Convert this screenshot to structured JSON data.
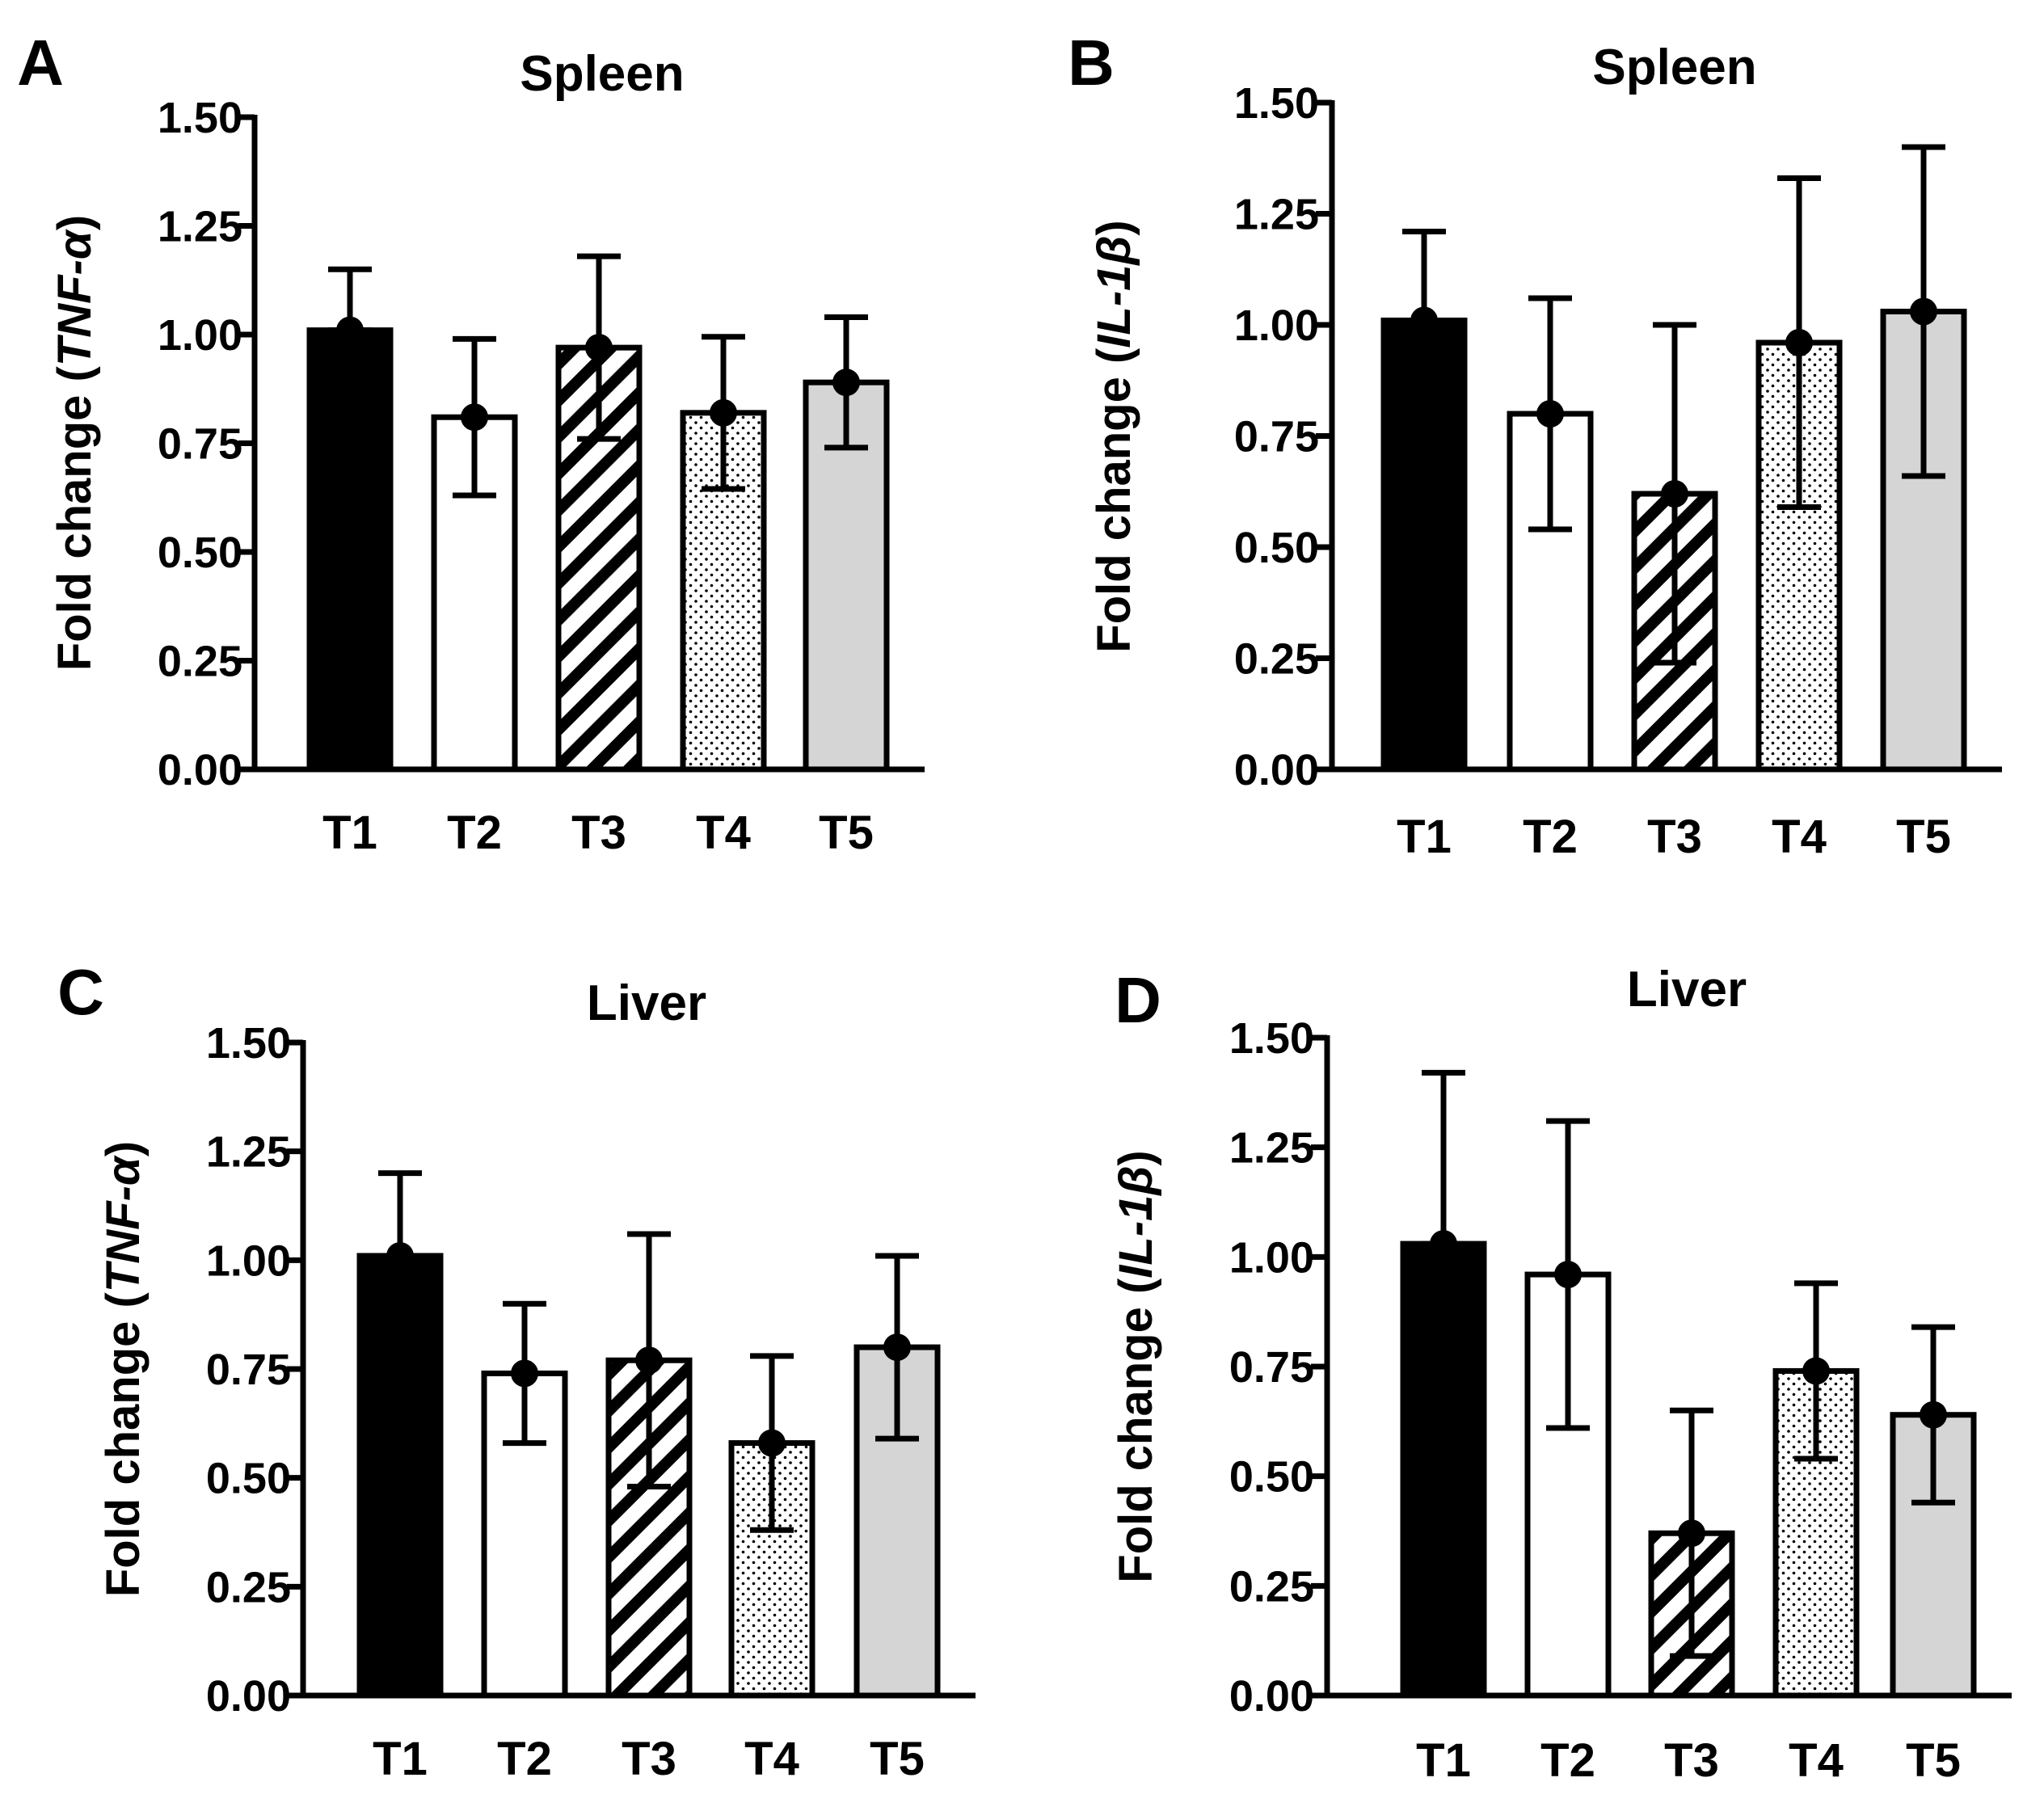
{
  "figure": {
    "background": "#ffffff"
  },
  "chart_data": [
    {
      "panel": "A",
      "type": "bar",
      "title": "Spleen",
      "ylabel_prefix": "Fold change (",
      "ylabel_gene": "TNF-α",
      "ylabel_suffix": ")",
      "xlabel": "",
      "ylim": [
        0,
        1.5
      ],
      "yticks": [
        "0.00",
        "0.25",
        "0.50",
        "0.75",
        "1.00",
        "1.25",
        "1.50"
      ],
      "categories": [
        "T1",
        "T2",
        "T3",
        "T4",
        "T5"
      ],
      "values": [
        1.01,
        0.81,
        0.97,
        0.82,
        0.89
      ],
      "error_low": [
        1.01,
        0.63,
        0.76,
        0.645,
        0.74
      ],
      "error_high": [
        1.15,
        0.99,
        1.18,
        0.995,
        1.04
      ],
      "fills": [
        "solid",
        "open",
        "hatch",
        "dots",
        "gray"
      ]
    },
    {
      "panel": "B",
      "type": "bar",
      "title": "Spleen",
      "ylabel_prefix": "Fold change (",
      "ylabel_gene": "IL-1β",
      "ylabel_suffix": ")",
      "xlabel": "",
      "ylim": [
        0,
        1.5
      ],
      "yticks": [
        "0.00",
        "0.25",
        "0.50",
        "0.75",
        "1.00",
        "1.25",
        "1.50"
      ],
      "categories": [
        "T1",
        "T2",
        "T3",
        "T4",
        "T5"
      ],
      "values": [
        1.01,
        0.8,
        0.62,
        0.96,
        1.03
      ],
      "error_low": [
        1.01,
        0.54,
        0.24,
        0.59,
        0.66
      ],
      "error_high": [
        1.21,
        1.06,
        1.0,
        1.33,
        1.4
      ],
      "fills": [
        "solid",
        "open",
        "hatch",
        "dots",
        "gray"
      ]
    },
    {
      "panel": "C",
      "type": "bar",
      "title": "Liver",
      "ylabel_prefix": "Fold change (",
      "ylabel_gene": "TNF-α",
      "ylabel_suffix": ")",
      "xlabel": "",
      "ylim": [
        0,
        1.5
      ],
      "yticks": [
        "0.00",
        "0.25",
        "0.50",
        "0.75",
        "1.00",
        "1.25",
        "1.50"
      ],
      "categories": [
        "T1",
        "T2",
        "T3",
        "T4",
        "T5"
      ],
      "values": [
        1.01,
        0.74,
        0.77,
        0.58,
        0.8
      ],
      "error_low": [
        1.01,
        0.58,
        0.48,
        0.38,
        0.59
      ],
      "error_high": [
        1.2,
        0.9,
        1.06,
        0.78,
        1.01
      ],
      "fills": [
        "solid",
        "open",
        "hatch",
        "dots",
        "gray"
      ]
    },
    {
      "panel": "D",
      "type": "bar",
      "title": "Liver",
      "ylabel_prefix": "Fold change (",
      "ylabel_gene": "IL-1β",
      "ylabel_suffix": ")",
      "xlabel": "",
      "ylim": [
        0,
        1.5
      ],
      "yticks": [
        "0.00",
        "0.25",
        "0.50",
        "0.75",
        "1.00",
        "1.25",
        "1.50"
      ],
      "categories": [
        "T1",
        "T2",
        "T3",
        "T4",
        "T5"
      ],
      "values": [
        1.03,
        0.96,
        0.37,
        0.74,
        0.64
      ],
      "error_low": [
        1.03,
        0.61,
        0.09,
        0.54,
        0.44
      ],
      "error_high": [
        1.42,
        1.31,
        0.65,
        0.94,
        0.84
      ],
      "fills": [
        "solid",
        "open",
        "hatch",
        "dots",
        "gray"
      ]
    }
  ]
}
